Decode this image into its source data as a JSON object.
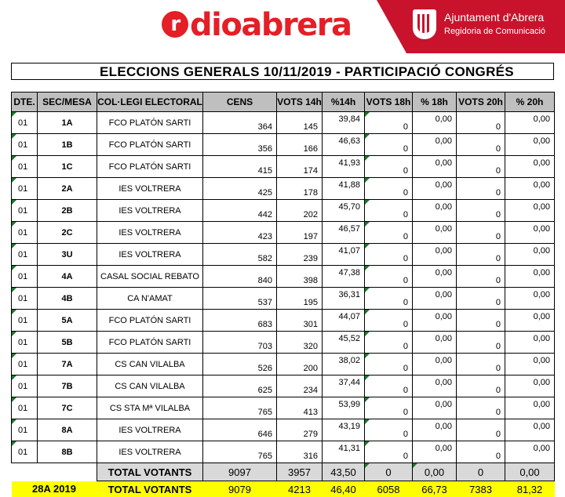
{
  "header": {
    "logo_text": "dioabrera",
    "logo_mark": "r",
    "org_name": "Ajuntament d'Abrera",
    "org_sub": "Regidoria de Comunicació",
    "brand_color": "#e41f26",
    "panel_color": "#c9132d"
  },
  "title": "ELECCIONS GENERALS 10/11/2019 - PARTICIPACIÓ CONGRÉS",
  "columns": [
    "DTE.",
    "SEC/MESA",
    "COL·LEGI ELECTORAL",
    "CENS",
    "VOTS 14h",
    "%14h",
    "VOTS 18h",
    "% 18h",
    "VOTS 20h",
    "% 20h"
  ],
  "rows": [
    {
      "dte": "01",
      "sec": "1A",
      "col": "FCO PLATÓN SARTI",
      "cens": "364",
      "v14": "145",
      "p14": "39,84",
      "v18": "0",
      "p18": "0,00",
      "v20": "0",
      "p20": "0,00"
    },
    {
      "dte": "01",
      "sec": "1B",
      "col": "FCO PLATÓN SARTI",
      "cens": "356",
      "v14": "166",
      "p14": "46,63",
      "v18": "0",
      "p18": "0,00",
      "v20": "0",
      "p20": "0,00"
    },
    {
      "dte": "01",
      "sec": "1C",
      "col": "FCO PLATÓN SARTI",
      "cens": "415",
      "v14": "174",
      "p14": "41,93",
      "v18": "0",
      "p18": "0,00",
      "v20": "0",
      "p20": "0,00"
    },
    {
      "dte": "01",
      "sec": "2A",
      "col": "IES VOLTRERA",
      "cens": "425",
      "v14": "178",
      "p14": "41,88",
      "v18": "0",
      "p18": "0,00",
      "v20": "0",
      "p20": "0,00"
    },
    {
      "dte": "01",
      "sec": "2B",
      "col": "IES VOLTRERA",
      "cens": "442",
      "v14": "202",
      "p14": "45,70",
      "v18": "0",
      "p18": "0,00",
      "v20": "0",
      "p20": "0,00"
    },
    {
      "dte": "01",
      "sec": "2C",
      "col": "IES VOLTRERA",
      "cens": "423",
      "v14": "197",
      "p14": "46,57",
      "v18": "0",
      "p18": "0,00",
      "v20": "0",
      "p20": "0,00"
    },
    {
      "dte": "01",
      "sec": "3U",
      "col": "IES VOLTRERA",
      "cens": "582",
      "v14": "239",
      "p14": "41,07",
      "v18": "0",
      "p18": "0,00",
      "v20": "0",
      "p20": "0,00"
    },
    {
      "dte": "01",
      "sec": "4A",
      "col": "CASAL SOCIAL REBATO",
      "cens": "840",
      "v14": "398",
      "p14": "47,38",
      "v18": "0",
      "p18": "0,00",
      "v20": "0",
      "p20": "0,00"
    },
    {
      "dte": "01",
      "sec": "4B",
      "col": "CA N'AMAT",
      "cens": "537",
      "v14": "195",
      "p14": "36,31",
      "v18": "0",
      "p18": "0,00",
      "v20": "0",
      "p20": "0,00"
    },
    {
      "dte": "01",
      "sec": "5A",
      "col": "FCO PLATÓN SARTI",
      "cens": "683",
      "v14": "301",
      "p14": "44,07",
      "v18": "0",
      "p18": "0,00",
      "v20": "0",
      "p20": "0,00"
    },
    {
      "dte": "01",
      "sec": "5B",
      "col": "FCO PLATÓN SARTI",
      "cens": "703",
      "v14": "320",
      "p14": "45,52",
      "v18": "0",
      "p18": "0,00",
      "v20": "0",
      "p20": "0,00"
    },
    {
      "dte": "01",
      "sec": "7A",
      "col": "CS CAN VILALBA",
      "cens": "526",
      "v14": "200",
      "p14": "38,02",
      "v18": "0",
      "p18": "0,00",
      "v20": "0",
      "p20": "0,00"
    },
    {
      "dte": "01",
      "sec": "7B",
      "col": "CS CAN VILALBA",
      "cens": "625",
      "v14": "234",
      "p14": "37,44",
      "v18": "0",
      "p18": "0,00",
      "v20": "0",
      "p20": "0,00"
    },
    {
      "dte": "01",
      "sec": "7C",
      "col": "CS STA Mª VILALBA",
      "cens": "765",
      "v14": "413",
      "p14": "53,99",
      "v18": "0",
      "p18": "0,00",
      "v20": "0",
      "p20": "0,00"
    },
    {
      "dte": "01",
      "sec": "8A",
      "col": "IES VOLTRERA",
      "cens": "646",
      "v14": "279",
      "p14": "43,19",
      "v18": "0",
      "p18": "0,00",
      "v20": "0",
      "p20": "0,00"
    },
    {
      "dte": "01",
      "sec": "8B",
      "col": "IES VOLTRERA",
      "cens": "765",
      "v14": "316",
      "p14": "41,31",
      "v18": "0",
      "p18": "0,00",
      "v20": "0",
      "p20": "0,00"
    }
  ],
  "total": {
    "label": "TOTAL VOTANTS",
    "cens": "9097",
    "v14": "3957",
    "p14": "43,50",
    "v18": "0",
    "p18": "0,00",
    "v20": "0",
    "p20": "0,00"
  },
  "prev": {
    "tag": "28A 2019",
    "label": "TOTAL VOTANTS",
    "cens": "9079",
    "v14": "4213",
    "p14": "46,40",
    "v18": "6058",
    "p18": "66,73",
    "v20": "7383",
    "p20": "81,32"
  }
}
